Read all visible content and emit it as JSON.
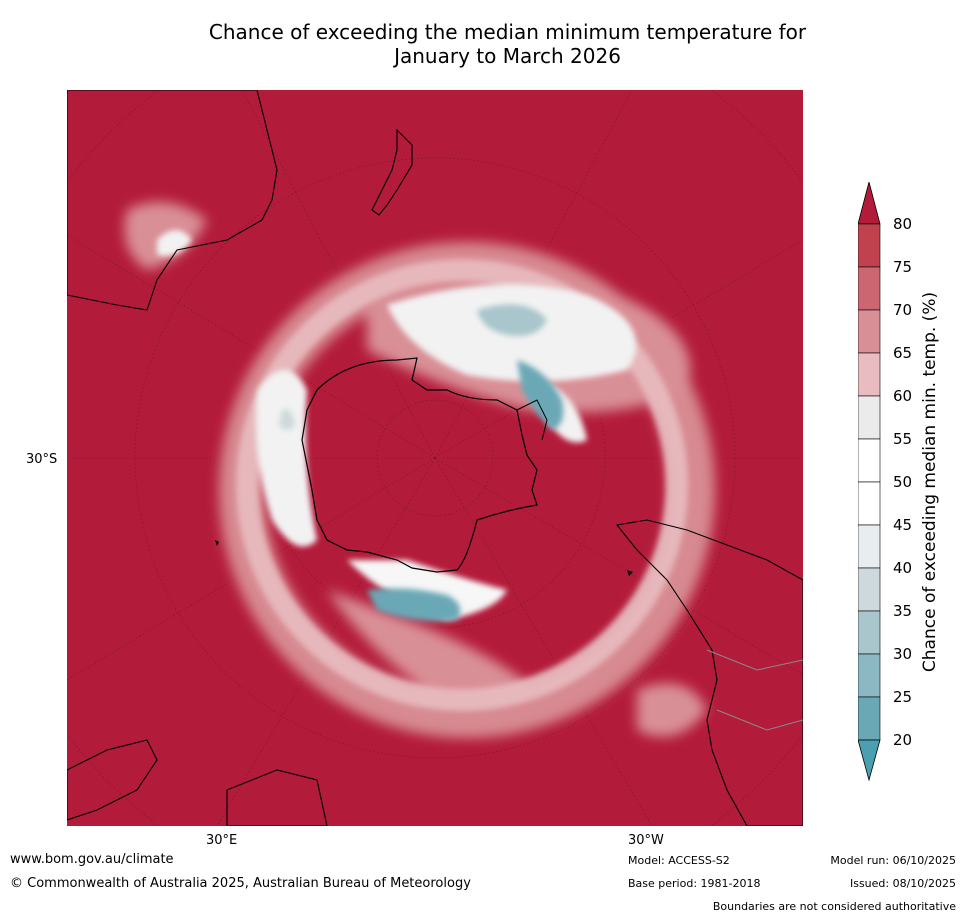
{
  "title": {
    "line1": "Chance of exceeding the median minimum temperature for",
    "line2": "January to March 2026"
  },
  "map": {
    "projection": "south-polar-stereographic",
    "grid_labels": {
      "lat": "30°S",
      "lon_east": "30°E",
      "lon_west": "30°W"
    },
    "background_class_color": "#b31b3a"
  },
  "colorbar": {
    "label": "Chance of exceeding median min. temp. (%)",
    "ticks": [
      "80",
      "75",
      "70",
      "65",
      "60",
      "55",
      "50",
      "45",
      "40",
      "35",
      "30",
      "25",
      "20"
    ],
    "bins": [
      {
        "range": "80+",
        "color": "#b31b3a"
      },
      {
        "range": "75-80",
        "color": "#c1424f"
      },
      {
        "range": "70-75",
        "color": "#cc6670"
      },
      {
        "range": "65-70",
        "color": "#d98f96"
      },
      {
        "range": "60-65",
        "color": "#e8bcc0"
      },
      {
        "range": "55-60",
        "color": "#ebebeb"
      },
      {
        "range": "50-55",
        "color": "#ffffff"
      },
      {
        "range": "45-50",
        "color": "#ffffff"
      },
      {
        "range": "40-45",
        "color": "#e8eef0"
      },
      {
        "range": "35-40",
        "color": "#cdd9dc"
      },
      {
        "range": "30-35",
        "color": "#a9c6cc"
      },
      {
        "range": "25-30",
        "color": "#8bb8c3"
      },
      {
        "range": "20-25",
        "color": "#6aa8b6"
      },
      {
        "range": "<20",
        "color": "#4aa0b0"
      }
    ]
  },
  "footer": {
    "website": "www.bom.gov.au/climate",
    "copyright": "© Commonwealth of Australia 2025, Australian Bureau of Meteorology",
    "model": "Model: ACCESS-S2",
    "base_period": "Base period: 1981-2018",
    "model_run": "Model run: 06/10/2025",
    "issued": "Issued: 08/10/2025",
    "disclaimer": "Boundaries are not considered authoritative"
  }
}
